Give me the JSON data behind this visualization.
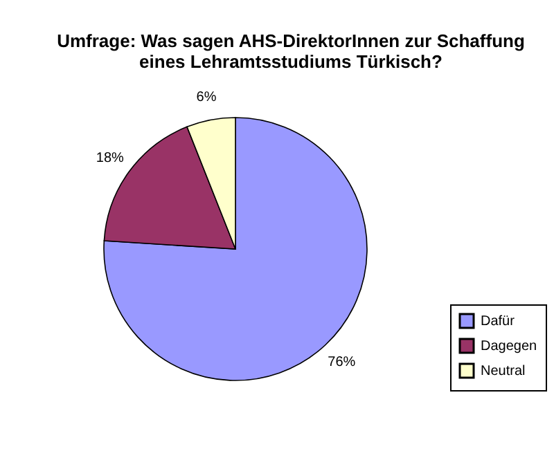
{
  "chart_data": {
    "type": "pie",
    "title": "Umfrage: Was sagen AHS-DirektorInnen zur Schaffung eines Lehramtsstudiums Türkisch?",
    "categories": [
      "Dafür",
      "Dagegen",
      "Neutral"
    ],
    "values": [
      76,
      18,
      6
    ],
    "colors": [
      "#9999ff",
      "#993366",
      "#ffffcc"
    ],
    "value_labels": [
      "76%",
      "18%",
      "6%"
    ],
    "legend": "right"
  }
}
